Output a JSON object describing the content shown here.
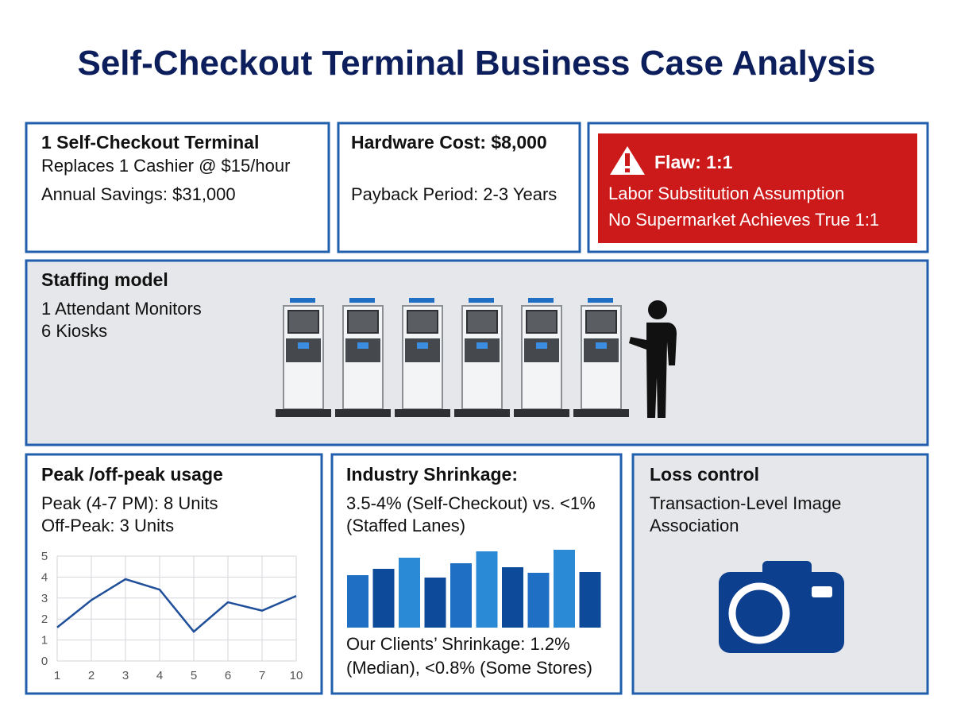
{
  "title": "Self-Checkout Terminal Business Case Analysis",
  "cards": [
    {
      "heading": "1 Self-Checkout Terminal",
      "lines": [
        "Replaces 1 Cashier @ $15/hour",
        "Annual Savings: $31,000"
      ]
    },
    {
      "heading": "Hardware Cost: $8,000",
      "lines": [
        "Payback Period: 2-3 Years"
      ]
    },
    {
      "heading": "Flaw: 1:1",
      "lines": [
        "Labor Substitution Assumption",
        "No Supermarket Achieves True 1:1"
      ]
    }
  ],
  "staffing": {
    "heading": "Staffing model",
    "lines": [
      "1 Attendant Monitors",
      "6 Kiosks"
    ]
  },
  "peak": {
    "heading": "Peak /off-peak usage",
    "lines": [
      "Peak (4-7 PM): 8 Units",
      "Off-Peak: 3 Units"
    ],
    "chart_data": {
      "type": "line",
      "categories": [
        "1",
        "2",
        "3",
        "4",
        "5",
        "6",
        "7",
        "10"
      ],
      "values": [
        1.6,
        2.9,
        3.9,
        3.4,
        1.4,
        2.8,
        2.4,
        3.1
      ],
      "color": "#1f4f9a",
      "ylim": [
        0,
        5
      ],
      "yticks": [
        0,
        1,
        2,
        3,
        4,
        5
      ],
      "grid": true
    }
  },
  "shrinkage": {
    "heading": "Industry Shrinkage:",
    "lines": [
      "3.5-4% (Self-Checkout) vs. <1%",
      "(Staffed Lanes)"
    ],
    "chart_data": {
      "type": "bar",
      "values": [
        66,
        74,
        88,
        63,
        81,
        96,
        76,
        69,
        98,
        70
      ],
      "colors": [
        "#1f6fc5",
        "#0d4a9a",
        "#2a8ad6",
        "#0d4a9a",
        "#1f6fc5",
        "#2a8ad6",
        "#0d4a9a",
        "#1f6fc5",
        "#2a8ad6",
        "#0d4a9a"
      ]
    },
    "footer": [
      "Our Clients’ Shrinkage: 1.2%",
      "(Median), <0.8% (Some Stores)"
    ]
  },
  "loss": {
    "heading": "Loss control",
    "lines": [
      "Transaction-Level Image",
      "Association"
    ]
  }
}
